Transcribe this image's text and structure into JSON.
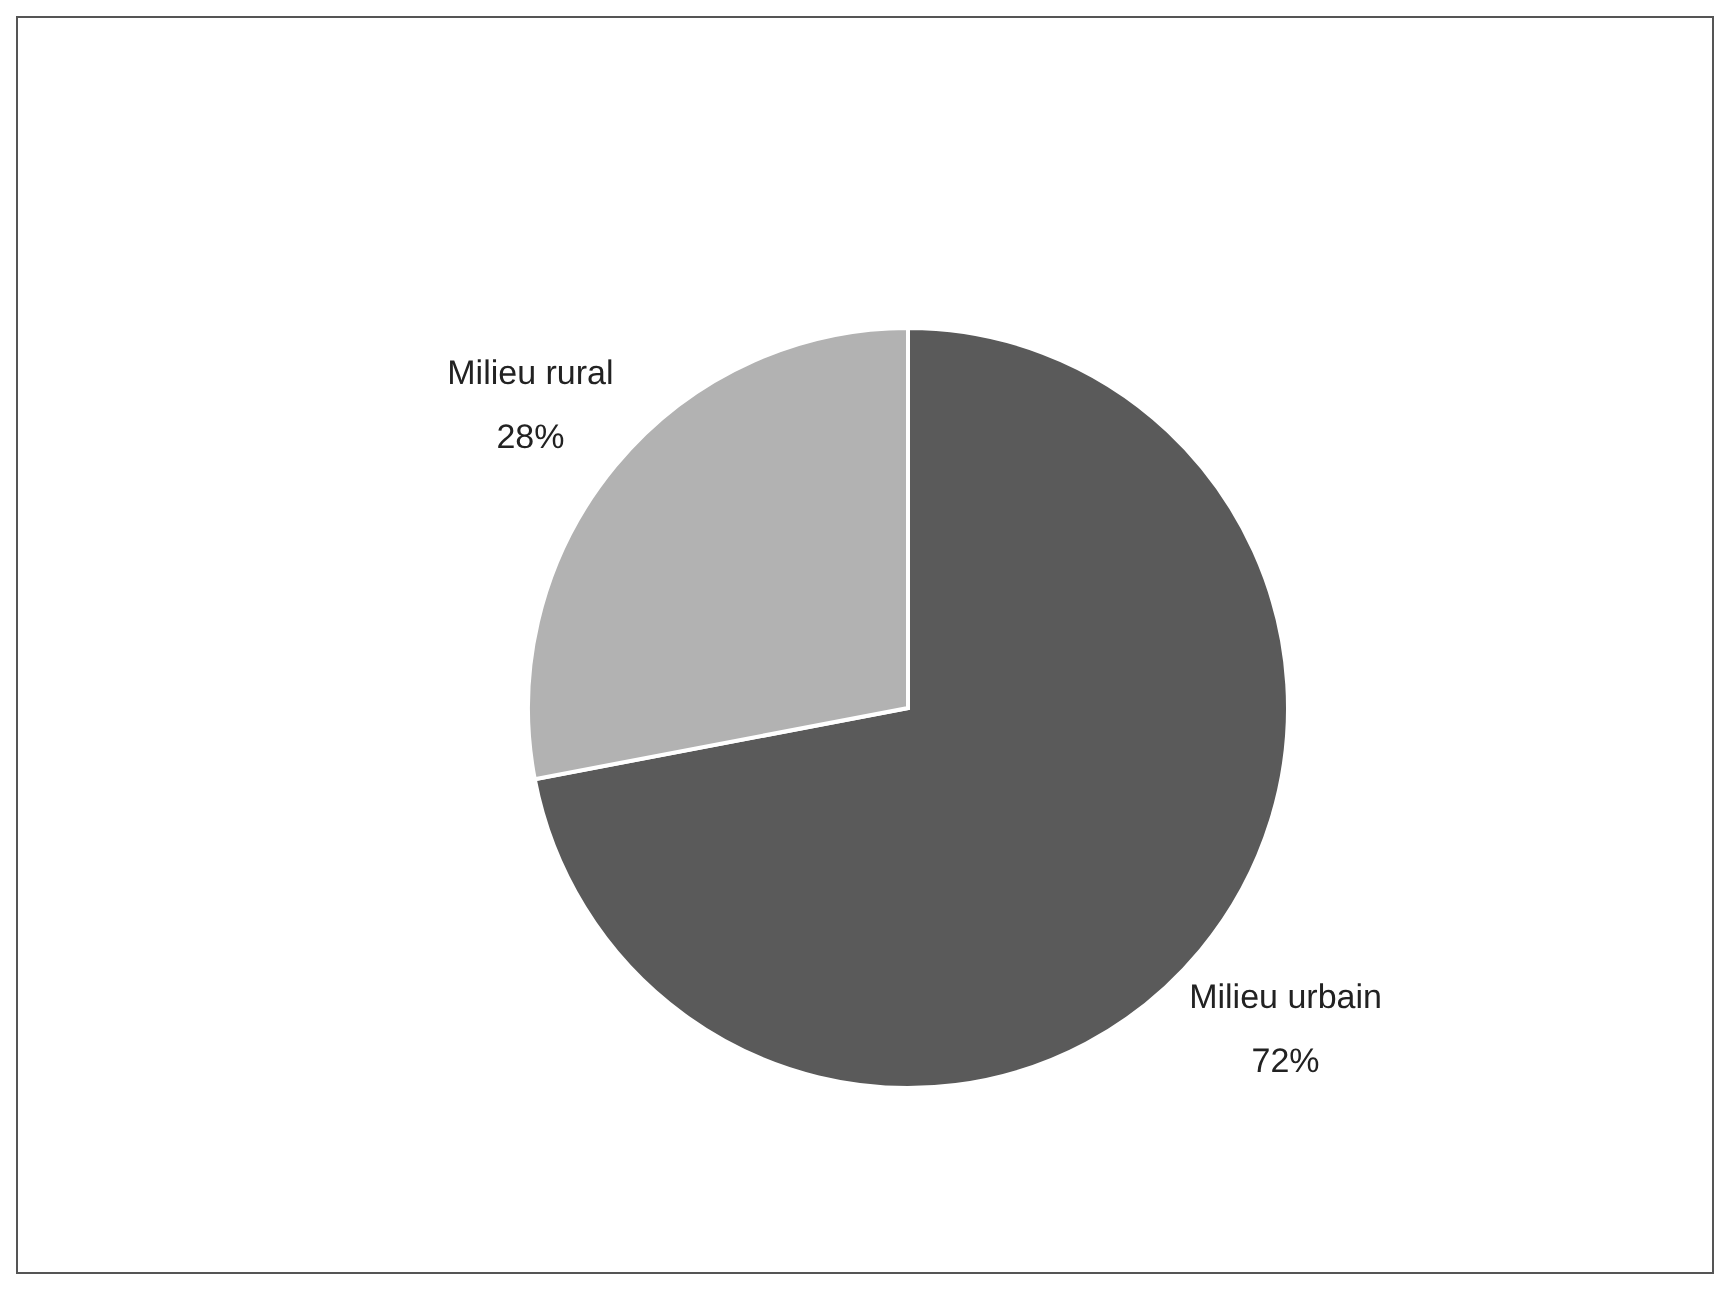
{
  "chart_data": {
    "type": "pie",
    "categories": [
      "Milieu urbain",
      "Milieu rural"
    ],
    "values": [
      72,
      28
    ],
    "colors": [
      "#5a5a5a",
      "#b2b2b2"
    ],
    "value_labels": [
      "72%",
      "28%"
    ],
    "legend": false
  }
}
